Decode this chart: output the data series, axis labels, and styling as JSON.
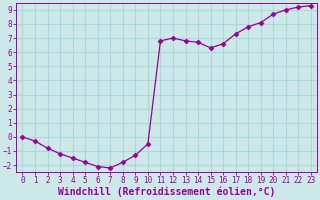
{
  "x": [
    0,
    1,
    2,
    3,
    4,
    5,
    6,
    7,
    8,
    9,
    10,
    11,
    12,
    13,
    14,
    15,
    16,
    17,
    18,
    19,
    20,
    21,
    22,
    23
  ],
  "y": [
    0.0,
    -0.3,
    -0.8,
    -1.2,
    -1.5,
    -1.8,
    -2.1,
    -2.2,
    -1.8,
    -1.3,
    -0.5,
    6.8,
    7.0,
    6.8,
    6.7,
    6.3,
    6.6,
    7.3,
    7.8,
    8.1,
    8.7,
    9.0,
    9.2,
    9.3
  ],
  "line_color": "#990099",
  "marker": "D",
  "marker_size": 2.5,
  "bg_color": "#cce8e8",
  "grid_color": "#b0d8d8",
  "xlim": [
    -0.5,
    23.5
  ],
  "ylim": [
    -2.5,
    9.5
  ],
  "xticks": [
    0,
    1,
    2,
    3,
    4,
    5,
    6,
    7,
    8,
    9,
    10,
    11,
    12,
    13,
    14,
    15,
    16,
    17,
    18,
    19,
    20,
    21,
    22,
    23
  ],
  "yticks": [
    -2,
    -1,
    0,
    1,
    2,
    3,
    4,
    5,
    6,
    7,
    8,
    9
  ],
  "tick_color": "#990099",
  "label_color": "#990099",
  "tick_fontsize": 5.5,
  "xlabel": "Windchill (Refroidissement éolien,°C)",
  "xlabel_fontsize": 7.0
}
